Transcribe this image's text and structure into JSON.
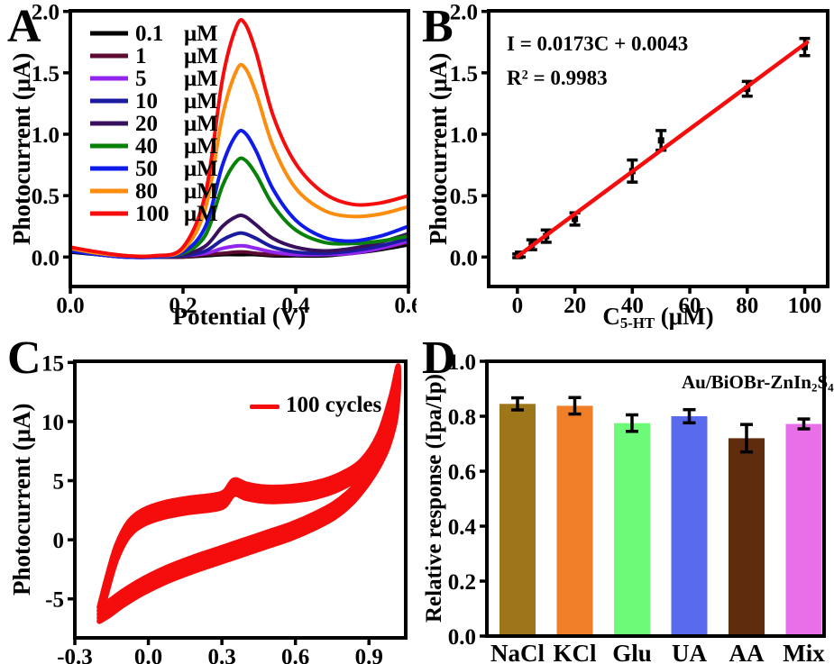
{
  "chart_data": [
    {
      "id": "A",
      "panel_letter": "A",
      "type": "line",
      "xlabel": "Potential (V)",
      "ylabel": "Photocurrent (μA)",
      "xlim": [
        0,
        0.6
      ],
      "ylim": [
        -0.24,
        2.005
      ],
      "xticks": [
        0,
        0.2,
        0.4,
        0.6
      ],
      "xtick_labels": [
        "0.0",
        "0.2",
        "0.4",
        "0.6"
      ],
      "yticks": [
        0,
        0.5,
        1.0,
        1.5,
        2.0
      ],
      "ytick_labels": [
        "0.0",
        "0.5",
        "1.0",
        "1.5",
        "2.0"
      ],
      "legend_position": "top-left",
      "peak_potential_V": 0.305,
      "x": [
        0,
        0.05,
        0.1,
        0.15,
        0.2,
        0.24,
        0.27,
        0.295,
        0.31,
        0.33,
        0.36,
        0.4,
        0.45,
        0.5,
        0.55,
        0.6
      ],
      "series": [
        {
          "name": "0.1",
          "unit": "μM",
          "color": "#000000",
          "y": [
            0.04,
            0.02,
            0.0,
            0.0,
            0.0,
            0.01,
            0.02,
            0.02,
            0.02,
            0.02,
            0.01,
            0.01,
            0.01,
            0.03,
            0.06,
            0.1
          ]
        },
        {
          "name": "1",
          "unit": "μM",
          "color": "#5C0B33",
          "y": [
            0.05,
            0.02,
            0.0,
            0.0,
            0.0,
            0.02,
            0.03,
            0.04,
            0.04,
            0.03,
            0.02,
            0.02,
            0.02,
            0.04,
            0.07,
            0.12
          ]
        },
        {
          "name": "5",
          "unit": "μM",
          "color": "#9326EE",
          "y": [
            0.05,
            0.02,
            0.0,
            0.0,
            0.01,
            0.03,
            0.07,
            0.09,
            0.09,
            0.07,
            0.04,
            0.02,
            0.02,
            0.03,
            0.07,
            0.13
          ]
        },
        {
          "name": "10",
          "unit": "μM",
          "color": "#1B1BA0",
          "y": [
            0.05,
            0.02,
            0.0,
            0.0,
            0.01,
            0.05,
            0.14,
            0.19,
            0.19,
            0.15,
            0.08,
            0.04,
            0.03,
            0.05,
            0.09,
            0.15
          ]
        },
        {
          "name": "20",
          "unit": "μM",
          "color": "#38105E",
          "y": [
            0.06,
            0.03,
            0.0,
            0.0,
            0.02,
            0.09,
            0.25,
            0.33,
            0.33,
            0.26,
            0.15,
            0.08,
            0.05,
            0.07,
            0.12,
            0.19
          ]
        },
        {
          "name": "40",
          "unit": "μM",
          "color": "#088108",
          "y": [
            0.06,
            0.03,
            0.01,
            0.0,
            0.03,
            0.18,
            0.58,
            0.78,
            0.79,
            0.67,
            0.42,
            0.22,
            0.12,
            0.11,
            0.13,
            0.17
          ]
        },
        {
          "name": "50",
          "unit": "μM",
          "color": "#0F1BE8",
          "y": [
            0.05,
            0.02,
            0.0,
            0.0,
            0.04,
            0.25,
            0.75,
            1.0,
            1.01,
            0.86,
            0.55,
            0.3,
            0.16,
            0.13,
            0.17,
            0.25
          ]
        },
        {
          "name": "80",
          "unit": "μM",
          "color": "#FD8D0E",
          "y": [
            0.07,
            0.03,
            0.01,
            0.01,
            0.06,
            0.4,
            1.15,
            1.52,
            1.54,
            1.33,
            0.9,
            0.56,
            0.38,
            0.33,
            0.35,
            0.41
          ]
        },
        {
          "name": "100",
          "unit": "μM",
          "color": "#F50D0D",
          "y": [
            0.08,
            0.04,
            0.01,
            0.01,
            0.08,
            0.52,
            1.45,
            1.88,
            1.9,
            1.66,
            1.15,
            0.76,
            0.52,
            0.43,
            0.44,
            0.5
          ]
        }
      ]
    },
    {
      "id": "B",
      "panel_letter": "B",
      "type": "scatter",
      "xlabel_base": "C",
      "xlabel_sub": "5-HT",
      "xlabel_rest": " (μM)",
      "ylabel": "Photocurrent (μA)",
      "xlim": [
        -10,
        108
      ],
      "ylim": [
        -0.24,
        2.005
      ],
      "xticks": [
        0,
        20,
        40,
        60,
        80,
        100
      ],
      "xtick_labels": [
        "0",
        "20",
        "40",
        "60",
        "80",
        "100"
      ],
      "yticks": [
        0,
        0.5,
        1.0,
        1.5,
        2.0
      ],
      "ytick_labels": [
        "0.0",
        "0.5",
        "1.0",
        "1.5",
        "2.0"
      ],
      "points": {
        "color": "#000000",
        "x": [
          0.1,
          1,
          5,
          10,
          20,
          40,
          50,
          80,
          100
        ],
        "y": [
          0.01,
          0.02,
          0.1,
          0.17,
          0.31,
          0.7,
          0.95,
          1.37,
          1.71
        ],
        "yerr": [
          0.015,
          0.02,
          0.04,
          0.05,
          0.05,
          0.09,
          0.08,
          0.06,
          0.07
        ]
      },
      "fit": {
        "equation": "I = 0.0173C + 0.0043",
        "r2_base": "R",
        "r2_sup": "2",
        "r2_rest": " = 0.9983",
        "slope": 0.0173,
        "intercept": 0.0043,
        "color": "#F50D0D",
        "x_start": 0,
        "x_end": 100.8
      }
    },
    {
      "id": "C",
      "panel_letter": "C",
      "type": "cv_loop",
      "ylabel": "Photocurrent (μA)",
      "legend_label": "100 cycles",
      "xlim": [
        -0.3,
        1.05
      ],
      "ylim": [
        -8.3,
        15.1
      ],
      "xticks": [
        -0.3,
        0,
        0.3,
        0.6,
        0.9
      ],
      "xtick_labels": [
        "-0.3",
        "0.0",
        "0.3",
        "0.6",
        "0.9"
      ],
      "yticks": [
        -5,
        0,
        5,
        10,
        15
      ],
      "ytick_labels": [
        "-5",
        "0",
        "5",
        "10",
        "15"
      ],
      "loop": {
        "color": "#F50D0D",
        "band_offsets": [
          -0.6,
          -0.3,
          0,
          0.3,
          0.6
        ],
        "forward": [
          [
            -0.2,
            -6.3
          ],
          [
            -0.17,
            -3.9
          ],
          [
            -0.13,
            -1.1
          ],
          [
            -0.08,
            0.9
          ],
          [
            -0.02,
            1.9
          ],
          [
            0.06,
            2.5
          ],
          [
            0.16,
            2.9
          ],
          [
            0.26,
            3.15
          ],
          [
            0.31,
            3.45
          ],
          [
            0.35,
            4.45
          ],
          [
            0.4,
            4.1
          ],
          [
            0.48,
            3.85
          ],
          [
            0.58,
            3.9
          ],
          [
            0.68,
            4.2
          ],
          [
            0.78,
            4.9
          ],
          [
            0.87,
            6.1
          ],
          [
            0.94,
            8.3
          ],
          [
            0.99,
            11.5
          ],
          [
            1.02,
            14.1
          ]
        ],
        "backward": [
          [
            1.01,
            11.0
          ],
          [
            0.98,
            8.6
          ],
          [
            0.94,
            6.8
          ],
          [
            0.89,
            5.2
          ],
          [
            0.83,
            3.7
          ],
          [
            0.76,
            2.5
          ],
          [
            0.68,
            1.6
          ],
          [
            0.58,
            0.7
          ],
          [
            0.48,
            0.0
          ],
          [
            0.38,
            -0.7
          ],
          [
            0.28,
            -1.4
          ],
          [
            0.18,
            -2.1
          ],
          [
            0.08,
            -2.9
          ],
          [
            -0.02,
            -3.9
          ],
          [
            -0.1,
            -4.9
          ],
          [
            -0.16,
            -5.8
          ],
          [
            -0.2,
            -6.3
          ]
        ]
      }
    },
    {
      "id": "D",
      "panel_letter": "D",
      "type": "bar",
      "ylabel": "Relative response (Ipa/Ip)",
      "annotation_base": "Au/BiOBr-ZnIn",
      "annotation_sub1": "2",
      "annotation_mid": "S",
      "annotation_sub2": "4",
      "categories": [
        "NaCl",
        "KCl",
        "Glu",
        "UA",
        "AA",
        "Mix"
      ],
      "values": [
        0.845,
        0.838,
        0.775,
        0.8,
        0.72,
        0.772
      ],
      "errors": [
        0.022,
        0.03,
        0.03,
        0.024,
        0.05,
        0.018
      ],
      "bar_colors": [
        "#9E761A",
        "#EF7E27",
        "#6DFA79",
        "#5A6AEE",
        "#5F2D0D",
        "#E96FE8"
      ],
      "ylim": [
        0,
        1.0
      ],
      "yticks": [
        0,
        0.2,
        0.4,
        0.6,
        0.8,
        1.0
      ],
      "ytick_labels": [
        "0.0",
        "0.2",
        "0.4",
        "0.6",
        "0.8",
        "1.0"
      ]
    }
  ]
}
